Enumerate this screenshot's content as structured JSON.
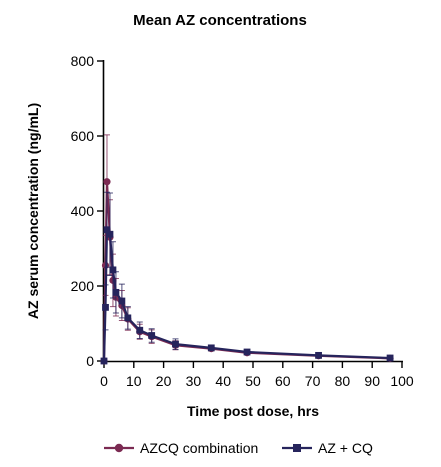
{
  "chart_data": {
    "type": "line",
    "title": "Mean AZ concentrations",
    "xlabel": "Time post dose, hrs",
    "ylabel": "AZ serum concentration (ng/mL)",
    "xlim": [
      0,
      100
    ],
    "ylim": [
      0,
      800
    ],
    "x_ticks": [
      0,
      10,
      20,
      30,
      40,
      50,
      60,
      70,
      80,
      90,
      100
    ],
    "y_ticks": [
      0,
      200,
      400,
      600,
      800
    ],
    "grid": false,
    "legend_position": "bottom",
    "series": [
      {
        "name": "AZCQ combination",
        "color": "#7b2a52",
        "marker": "circle",
        "points": [
          {
            "x": 0,
            "y": 0
          },
          {
            "x": 0.5,
            "y": 255,
            "err": 80
          },
          {
            "x": 1,
            "y": 478,
            "err": 125
          },
          {
            "x": 2,
            "y": 330,
            "err": 100
          },
          {
            "x": 3,
            "y": 215,
            "err": 70
          },
          {
            "x": 4,
            "y": 170,
            "err": 50
          },
          {
            "x": 6,
            "y": 148,
            "err": 40
          },
          {
            "x": 8,
            "y": 112,
            "err": 30
          },
          {
            "x": 12,
            "y": 78,
            "err": 20
          },
          {
            "x": 16,
            "y": 65,
            "err": 18
          },
          {
            "x": 24,
            "y": 42,
            "err": 12
          },
          {
            "x": 36,
            "y": 33,
            "err": 6
          },
          {
            "x": 48,
            "y": 22,
            "err": 5
          },
          {
            "x": 72,
            "y": 14,
            "err": 4
          },
          {
            "x": 96,
            "y": 7,
            "err": 2
          }
        ]
      },
      {
        "name": "AZ + CQ",
        "color": "#26245c",
        "marker": "square",
        "points": [
          {
            "x": 0,
            "y": 0
          },
          {
            "x": 0.5,
            "y": 143,
            "err": 60
          },
          {
            "x": 1,
            "y": 350,
            "err": 100
          },
          {
            "x": 2,
            "y": 338,
            "err": 110
          },
          {
            "x": 3,
            "y": 243,
            "err": 75
          },
          {
            "x": 4,
            "y": 183,
            "err": 55
          },
          {
            "x": 6,
            "y": 160,
            "err": 45
          },
          {
            "x": 8,
            "y": 115,
            "err": 30
          },
          {
            "x": 12,
            "y": 82,
            "err": 22
          },
          {
            "x": 16,
            "y": 68,
            "err": 18
          },
          {
            "x": 24,
            "y": 45,
            "err": 14
          },
          {
            "x": 36,
            "y": 35,
            "err": 6
          },
          {
            "x": 48,
            "y": 24,
            "err": 5
          },
          {
            "x": 72,
            "y": 15,
            "err": 4
          },
          {
            "x": 96,
            "y": 8,
            "err": 2
          }
        ]
      }
    ]
  }
}
